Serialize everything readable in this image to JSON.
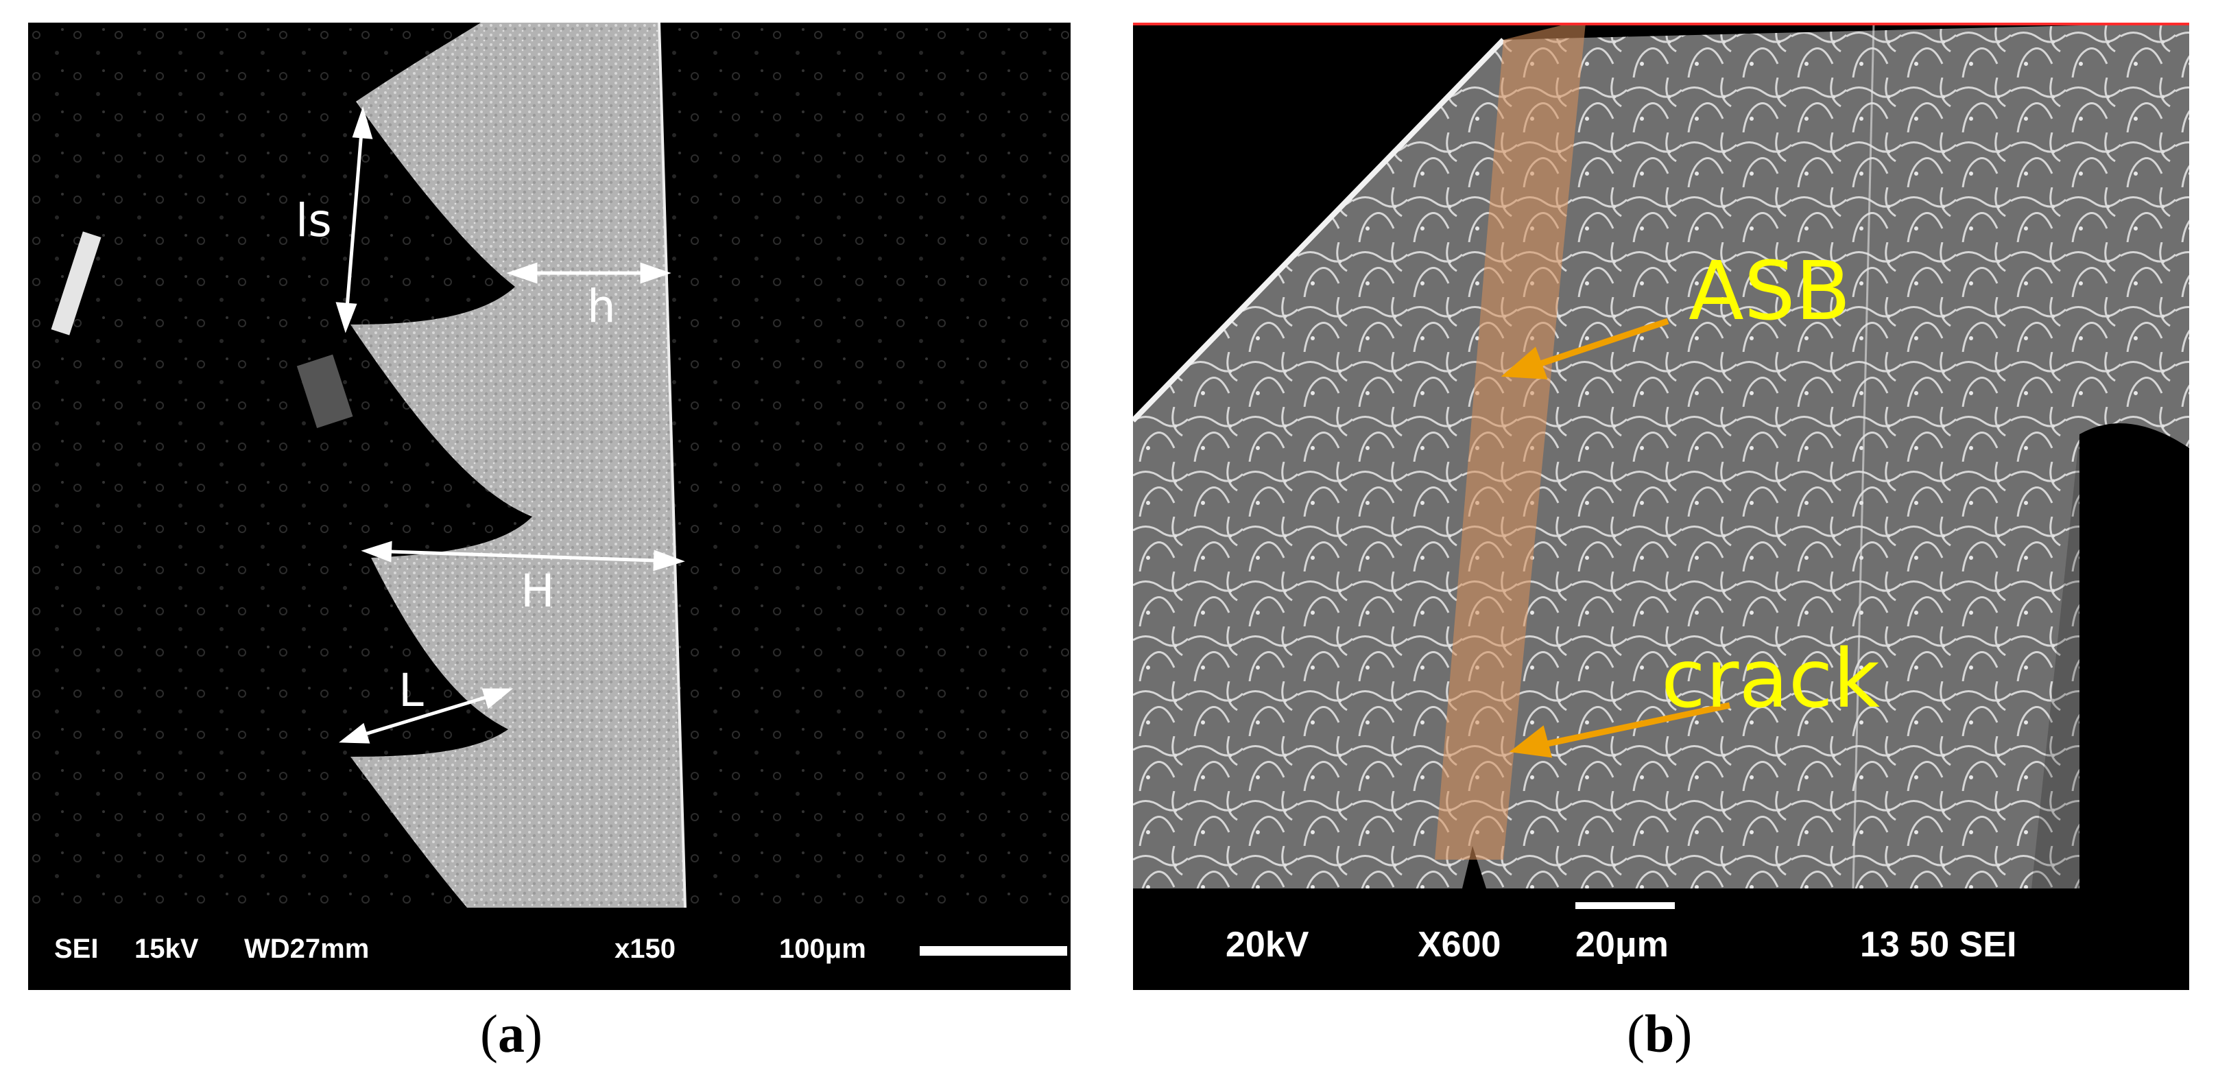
{
  "panel_a": {
    "caption": {
      "open": "(",
      "letter": "a",
      "close": ")"
    },
    "labels": {
      "ls": "ls",
      "h": "h",
      "H": "H",
      "L": "L"
    },
    "info_bar": {
      "mode": "SEI",
      "voltage": "15kV",
      "working_distance": "WD27mm",
      "magnification": "x150",
      "scale": "100μm"
    }
  },
  "panel_b": {
    "caption": {
      "open": "(",
      "letter": "b",
      "close": ")"
    },
    "labels": {
      "asb": "ASB",
      "crack": "crack"
    },
    "info_bar": {
      "voltage": "20kV",
      "magnification": "X600",
      "scale": "20μm",
      "id": "13 50 SEI"
    }
  },
  "colors": {
    "arrow_orange": "#f0a000",
    "label_yellow": "#ffff00",
    "band_overlay": "#d9905a"
  }
}
